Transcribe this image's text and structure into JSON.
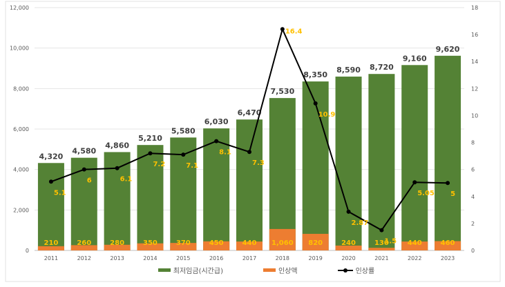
{
  "chart_data": {
    "type": "bar+line",
    "categories": [
      "2011",
      "2012",
      "2013",
      "2014",
      "2015",
      "2016",
      "2017",
      "2018",
      "2019",
      "2020",
      "2021",
      "2022",
      "2023"
    ],
    "series": [
      {
        "name": "최저임금(시간급)",
        "type": "bar",
        "axis": "left",
        "color": "#548235",
        "values": [
          4320,
          4580,
          4860,
          5210,
          5580,
          6030,
          6470,
          7530,
          8350,
          8590,
          8720,
          9160,
          9620
        ],
        "labels": [
          "4,320",
          "4,580",
          "4,860",
          "5,210",
          "5,580",
          "6,030",
          "6,470",
          "7,530",
          "8,350",
          "8,590",
          "8,720",
          "9,160",
          "9,620"
        ]
      },
      {
        "name": "인상액",
        "type": "bar",
        "axis": "left",
        "color": "#ED7D31",
        "values": [
          210,
          260,
          280,
          350,
          370,
          450,
          440,
          1060,
          820,
          240,
          130,
          440,
          460
        ],
        "labels": [
          "210",
          "260",
          "280",
          "350",
          "370",
          "450",
          "440",
          "1,060",
          "820",
          "240",
          "130",
          "440",
          "460"
        ]
      },
      {
        "name": "인상률",
        "type": "line",
        "axis": "right",
        "color": "#000000",
        "values": [
          5.1,
          6,
          6.1,
          7.2,
          7.1,
          8.1,
          7.3,
          16.4,
          10.9,
          2.87,
          1.5,
          5.05,
          5
        ],
        "labels": [
          "5.1",
          "6",
          "6.1",
          "7.2",
          "7.1",
          "8.1",
          "7.3",
          "16.4",
          "10.9",
          "2.87",
          "1.5",
          "5.05",
          "5"
        ]
      }
    ],
    "ylim": [
      0,
      12000
    ],
    "yticks": [
      "0",
      "2,000",
      "4,000",
      "6,000",
      "8,000",
      "10,000",
      "12,000"
    ],
    "y2lim": [
      0,
      18
    ],
    "y2ticks": [
      "0",
      "2",
      "4",
      "6",
      "8",
      "10",
      "12",
      "14",
      "16",
      "18"
    ],
    "label_color": "#FFC000",
    "grid": true,
    "legend": "bottom"
  }
}
